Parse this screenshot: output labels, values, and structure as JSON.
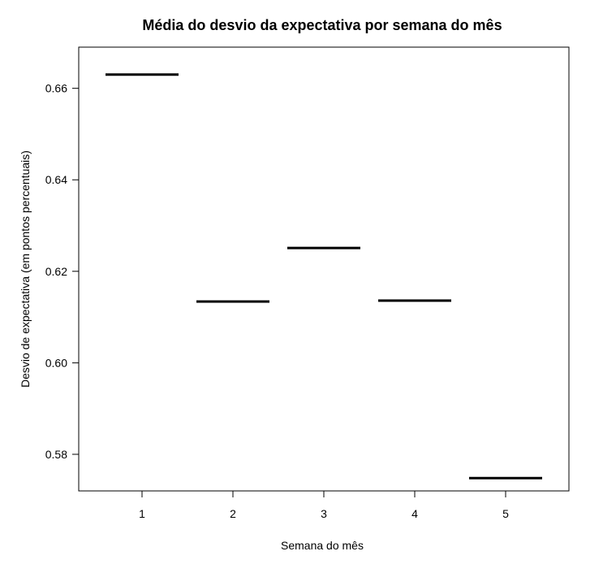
{
  "chart_data": {
    "type": "line",
    "title": "Média do desvio da expectativa por semana do mês",
    "xlabel": "Semana do mês",
    "ylabel": "Desvio de expectativa (em pontos percentuais)",
    "categories": [
      "1",
      "2",
      "3",
      "4",
      "5"
    ],
    "values": [
      0.663,
      0.6134,
      0.6251,
      0.6136,
      0.5748
    ],
    "ylim": [
      0.572,
      0.669
    ],
    "yticks": [
      0.58,
      0.6,
      0.62,
      0.64,
      0.66
    ],
    "ytick_labels": [
      "0.58",
      "0.60",
      "0.62",
      "0.64",
      "0.66"
    ],
    "grid": false,
    "colors": {
      "segment": "#000000",
      "frame": "#000000"
    }
  }
}
